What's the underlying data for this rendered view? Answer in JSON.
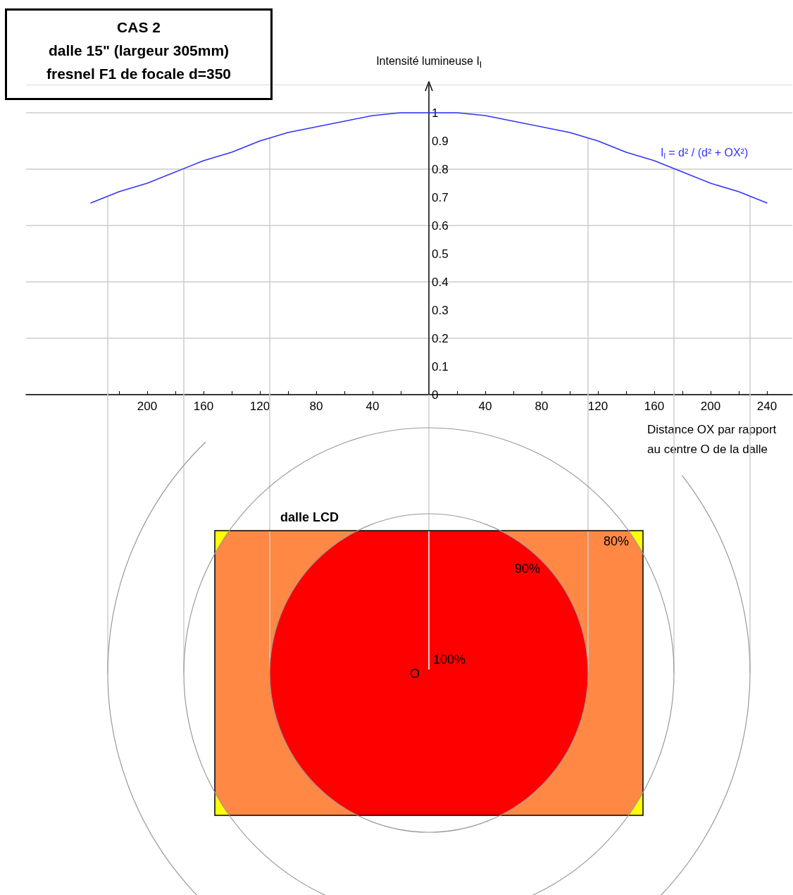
{
  "chart_data": {
    "type": "line",
    "title": "CAS 2",
    "subtitle": "dalle 15\" (largeur 305mm)\nfresnel F1 de focale d=350",
    "xlabel": "Distance OX par rapport au centre O de la dalle",
    "ylabel": "Intensité lumineuse I$_{l}$",
    "annotations": [
      "dalle LCD",
      "O",
      "100%",
      "90%",
      "80%"
    ],
    "series": [
      {
        "name": "I$_{l}$ = d² / (d² + OX²)",
        "color": "#3333ff",
        "x": [
          -240,
          -220,
          -200,
          -180,
          -160,
          -140,
          -120,
          -100,
          -80,
          -60,
          -40,
          -20,
          0,
          20,
          40,
          60,
          80,
          100,
          120,
          140,
          160,
          180,
          200,
          220,
          240
        ],
        "values": [
          0.68,
          0.72,
          0.75,
          0.79,
          0.83,
          0.86,
          0.9,
          0.93,
          0.95,
          0.97,
          0.99,
          1,
          1,
          1,
          0.99,
          0.97,
          0.95,
          0.93,
          0.9,
          0.86,
          0.83,
          0.79,
          0.75,
          0.72,
          0.68
        ]
      }
    ],
    "xlim": [
      -286,
      258
    ],
    "ylim": [
      0,
      1.1
    ],
    "xticks": [
      {
        "value": -220,
        "label": null
      },
      {
        "value": -200,
        "label": "200"
      },
      {
        "value": -180,
        "label": null
      },
      {
        "value": -160,
        "label": "160"
      },
      {
        "value": -140,
        "label": null
      },
      {
        "value": -120,
        "label": "120"
      },
      {
        "value": -100,
        "label": null
      },
      {
        "value": -80,
        "label": "80"
      },
      {
        "value": -60,
        "label": null
      },
      {
        "value": -40,
        "label": "40"
      },
      {
        "value": -20,
        "label": null
      },
      {
        "value": 20,
        "label": null
      },
      40,
      {
        "value": 60,
        "label": null
      },
      80,
      {
        "value": 100,
        "label": null
      },
      120,
      {
        "value": 140,
        "label": null
      },
      160,
      {
        "value": 180,
        "label": null
      },
      200,
      {
        "value": 220,
        "label": null
      },
      240
    ],
    "yticks": [
      0,
      0.1,
      0.2,
      0.3,
      0.4,
      0.5,
      0.6,
      0.7,
      0.8,
      0.9,
      1
    ],
    "ref_lines": [
      {
        "axis": "x",
        "value": -228,
        "color": "#cccccc"
      },
      {
        "axis": "x",
        "value": -174,
        "color": "#cccccc"
      },
      {
        "axis": "x",
        "value": -113,
        "color": "#cccccc"
      },
      {
        "axis": "x",
        "value": 113,
        "color": "#cccccc"
      },
      {
        "axis": "x",
        "value": 174,
        "color": "#cccccc"
      },
      {
        "axis": "x",
        "value": 228,
        "color": "#cccccc"
      }
    ],
    "grid": "y",
    "legend": false,
    "marker": "none",
    "line_style": "solid"
  }
}
